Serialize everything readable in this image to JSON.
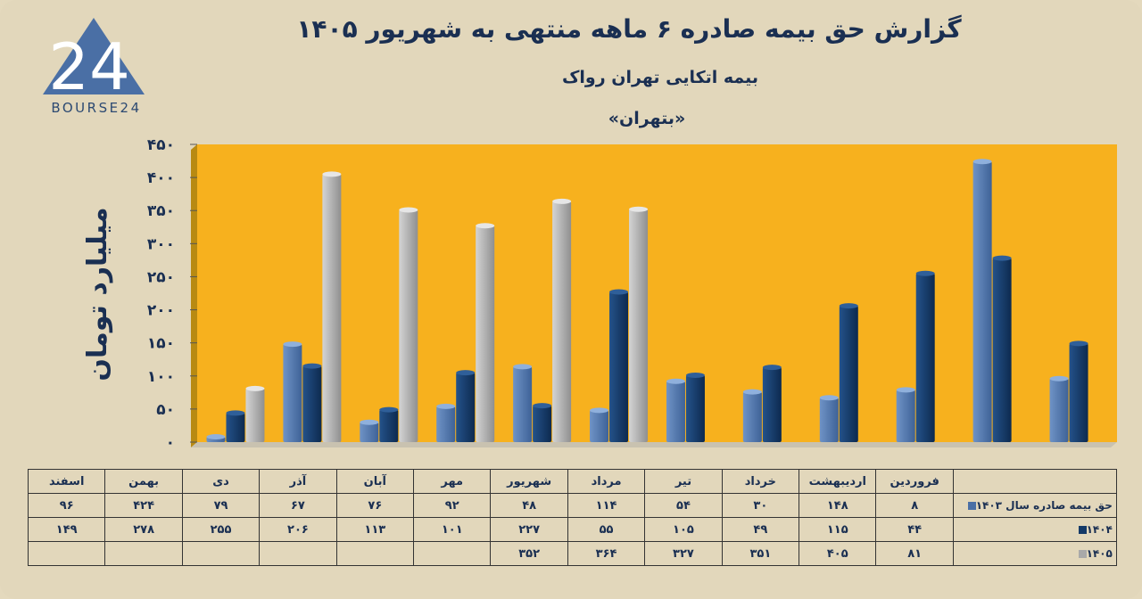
{
  "header": {
    "title": "گزارش  حق بیمه صادره ۶ ماهه منتهی به شهریور ۱۴۰۵",
    "subtitle": "بیمه اتکایی تهران رواک",
    "symbol": "«بتهران»",
    "logo_text": "BOURSE24",
    "logo_number": "24"
  },
  "colors": {
    "background": "#e2d7bb",
    "plot_area": "#f7b11e",
    "series_1403": "#4a6fa5",
    "series_1404": "#143a68",
    "series_1405": "#a9a9a9"
  },
  "chart_data": {
    "type": "bar",
    "ylabel": "میلیارد تومان",
    "ylim": [
      0,
      450
    ],
    "yticks": [
      "۰",
      "۵۰",
      "۱۰۰",
      "۱۵۰",
      "۲۰۰",
      "۲۵۰",
      "۳۰۰",
      "۳۵۰",
      "۴۰۰",
      "۴۵۰"
    ],
    "categories": [
      "فروردین",
      "اردیبهشت",
      "خرداد",
      "تیر",
      "مرداد",
      "شهریور",
      "مهر",
      "آبان",
      "آذر",
      "دی",
      "بهمن",
      "اسفند"
    ],
    "series": [
      {
        "name": "حق بیمه صادره سال ۱۴۰۳",
        "values": [
          8,
          148,
          30,
          54,
          114,
          48,
          92,
          76,
          67,
          79,
          424,
          96
        ],
        "labels": [
          "۸",
          "۱۴۸",
          "۳۰",
          "۵۴",
          "۱۱۴",
          "۴۸",
          "۹۲",
          "۷۶",
          "۶۷",
          "۷۹",
          "۴۲۴",
          "۹۶"
        ]
      },
      {
        "name": "۱۴۰۴",
        "values": [
          44,
          115,
          49,
          105,
          55,
          227,
          101,
          113,
          206,
          255,
          278,
          149
        ],
        "labels": [
          "۴۴",
          "۱۱۵",
          "۴۹",
          "۱۰۵",
          "۵۵",
          "۲۲۷",
          "۱۰۱",
          "۱۱۳",
          "۲۰۶",
          "۲۵۵",
          "۲۷۸",
          "۱۴۹"
        ]
      },
      {
        "name": "۱۴۰۵",
        "values": [
          81,
          405,
          351,
          327,
          364,
          352,
          null,
          null,
          null,
          null,
          null,
          null
        ],
        "labels": [
          "۸۱",
          "۴۰۵",
          "۳۵۱",
          "۳۲۷",
          "۳۶۴",
          "۳۵۲",
          "",
          "",
          "",
          "",
          "",
          ""
        ]
      }
    ]
  }
}
